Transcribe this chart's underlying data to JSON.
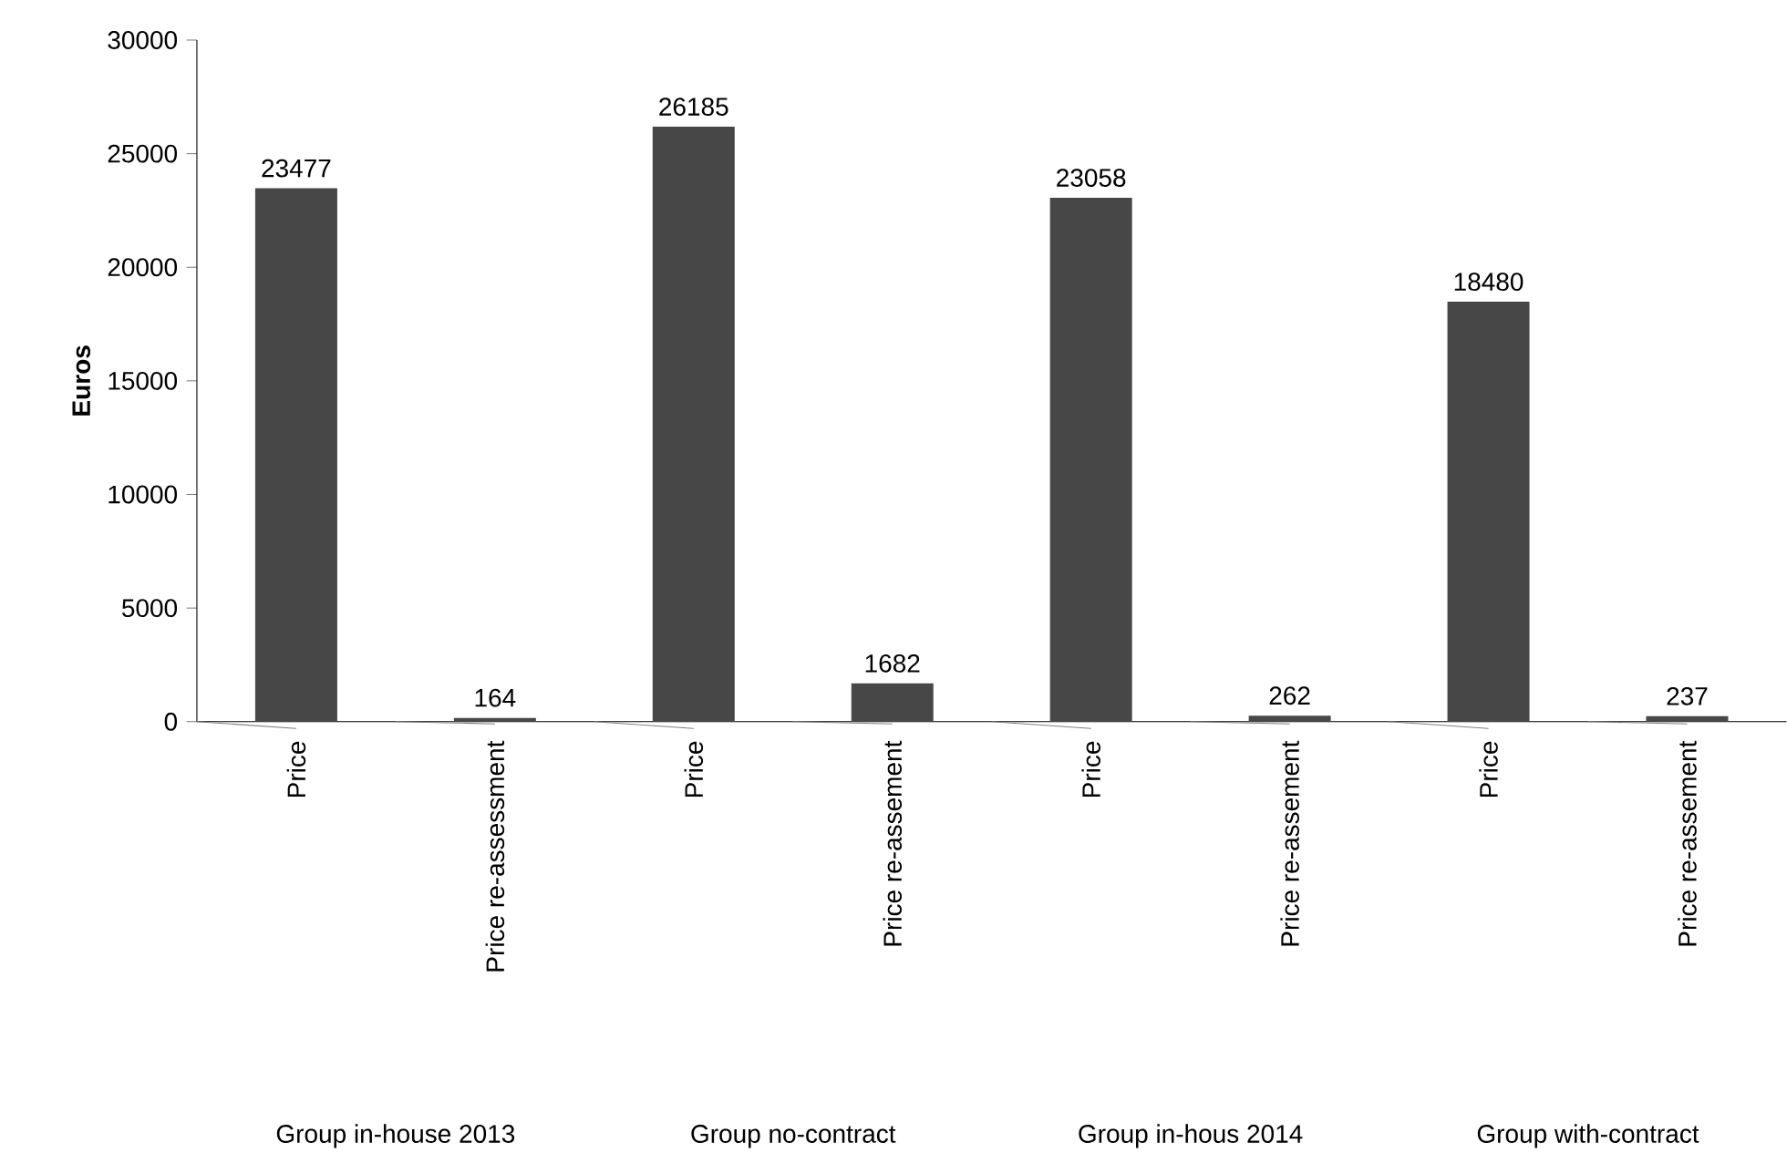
{
  "chart_data": {
    "type": "bar",
    "ylabel": "Euros",
    "categories": [
      "Price",
      "Price re-assessment",
      "Price",
      "Price re-assement",
      "Price",
      "Price re-assement",
      "Price",
      "Price re-assement"
    ],
    "values": [
      23477,
      164,
      26185,
      1682,
      23058,
      262,
      18480,
      237
    ],
    "color": "#474747",
    "ylim": [
      0,
      30000
    ],
    "yticks": [
      0,
      5000,
      10000,
      15000,
      20000,
      25000,
      30000
    ],
    "data_labels": true,
    "annotations": [
      "Group in-house 2013",
      "Group no-contract",
      "Group in-hous 2014",
      "Group with-contract"
    ]
  }
}
